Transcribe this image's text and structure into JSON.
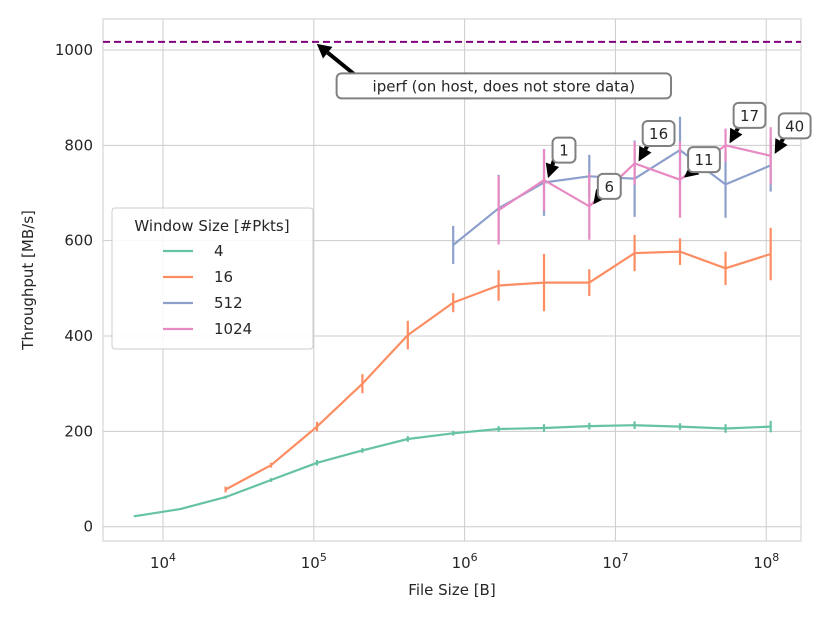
{
  "chart_data": {
    "type": "line",
    "xlabel": "File Size [B]",
    "ylabel": "Throughput [MB/s]",
    "xscale": "log",
    "xlim": [
      4000,
      170000000
    ],
    "ylim": [
      -30,
      1065
    ],
    "xticks": [
      {
        "value": 10000,
        "base": "10",
        "exp": "4"
      },
      {
        "value": 100000,
        "base": "10",
        "exp": "5"
      },
      {
        "value": 1000000,
        "base": "10",
        "exp": "6"
      },
      {
        "value": 10000000,
        "base": "10",
        "exp": "7"
      },
      {
        "value": 100000000,
        "base": "10",
        "exp": "8"
      }
    ],
    "yticks": [
      {
        "value": 0,
        "label": "0"
      },
      {
        "value": 200,
        "label": "200"
      },
      {
        "value": 400,
        "label": "400"
      },
      {
        "value": 600,
        "label": "600"
      },
      {
        "value": 800,
        "label": "800"
      },
      {
        "value": 1000,
        "label": "1000"
      }
    ],
    "grid": true,
    "legend": {
      "title": "Window Size [#Pkts]",
      "placement": "center-left"
    },
    "series": [
      {
        "name": "4",
        "color": "#66c2a5",
        "x": [
          6500,
          13000,
          26000,
          52000,
          105000,
          210000,
          420000,
          840000,
          1680000,
          3360000,
          6710000,
          13400000,
          26800000,
          53700000,
          107000000
        ],
        "y": [
          22,
          37,
          62,
          98,
          134,
          160,
          184,
          196,
          205,
          207,
          211,
          213,
          210,
          206,
          210
        ],
        "err": [
          2,
          2,
          3,
          4,
          6,
          5,
          6,
          5,
          6,
          8,
          7,
          8,
          7,
          9,
          12
        ]
      },
      {
        "name": "16",
        "color": "#fc8d62",
        "x": [
          26000,
          52000,
          105000,
          210000,
          420000,
          840000,
          1680000,
          3360000,
          6710000,
          13400000,
          26800000,
          53700000,
          107000000
        ],
        "y": [
          78,
          129,
          210,
          300,
          402,
          470,
          506,
          512,
          512,
          574,
          577,
          542,
          572
        ],
        "err": [
          6,
          5,
          10,
          20,
          30,
          20,
          32,
          60,
          28,
          38,
          28,
          35,
          55
        ]
      },
      {
        "name": "512",
        "color": "#8da0cb",
        "x": [
          840000,
          1680000,
          3360000,
          6710000,
          13400000,
          26800000,
          53700000,
          107000000
        ],
        "y": [
          591,
          668,
          722,
          735,
          730,
          790,
          718,
          758
        ],
        "err": [
          40,
          70,
          70,
          45,
          80,
          70,
          70,
          55
        ]
      },
      {
        "name": "1024",
        "color": "#e78ac3",
        "x": [
          1680000,
          3360000,
          6710000,
          13400000,
          26800000,
          53700000,
          107000000
        ],
        "y": [
          664,
          727,
          672,
          762,
          728,
          800,
          778
        ],
        "err": [
          72,
          65,
          70,
          45,
          80,
          35,
          60
        ]
      }
    ],
    "reference_line": {
      "y": 1017,
      "color": "#800080",
      "style": "dashed"
    },
    "annotations": [
      {
        "text": "iperf (on host, does not store data)",
        "x": 100000,
        "y": 1017
      },
      {
        "text": "1",
        "x": 3360000,
        "y": 727
      },
      {
        "text": "6",
        "x": 6710000,
        "y": 672
      },
      {
        "text": "16",
        "x": 13400000,
        "y": 762
      },
      {
        "text": "11",
        "x": 26800000,
        "y": 728
      },
      {
        "text": "17",
        "x": 53700000,
        "y": 800
      },
      {
        "text": "40",
        "x": 107000000,
        "y": 778
      }
    ]
  }
}
